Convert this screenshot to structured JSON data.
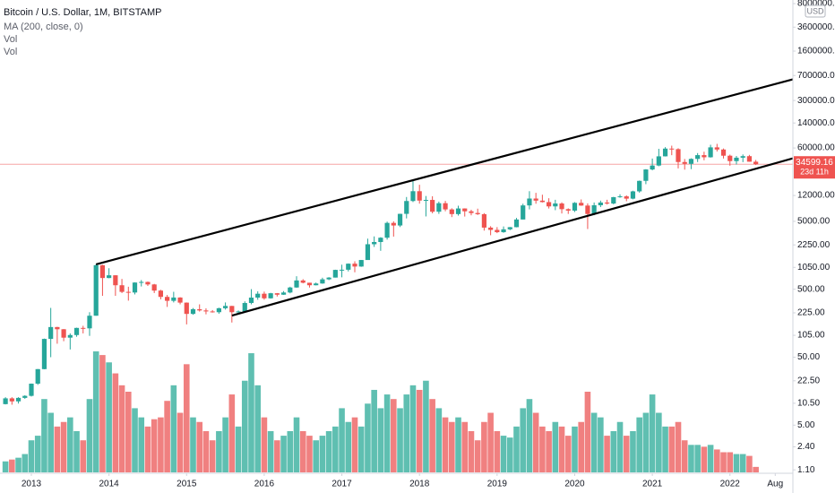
{
  "chart_data": {
    "type": "candlestick",
    "title": "Bitcoin / U.S. Dollar, 1M, BITSTAMP",
    "indicators": [
      "MA (200, close, 0)",
      "Vol",
      "Vol"
    ],
    "currency": "USD",
    "log_scale": true,
    "grid": false,
    "up_color": "#26a69a",
    "down_color": "#ef5350",
    "up_volume_color": "#5fbfb1",
    "down_volume_color": "#f08080",
    "x": [
      "2012-09",
      "2012-10",
      "2012-11",
      "2012-12",
      "2013-01",
      "2013-02",
      "2013-03",
      "2013-04",
      "2013-05",
      "2013-06",
      "2013-07",
      "2013-08",
      "2013-09",
      "2013-10",
      "2013-11",
      "2013-12",
      "2014-01",
      "2014-02",
      "2014-03",
      "2014-04",
      "2014-05",
      "2014-06",
      "2014-07",
      "2014-08",
      "2014-09",
      "2014-10",
      "2014-11",
      "2014-12",
      "2015-01",
      "2015-02",
      "2015-03",
      "2015-04",
      "2015-05",
      "2015-06",
      "2015-07",
      "2015-08",
      "2015-09",
      "2015-10",
      "2015-11",
      "2015-12",
      "2016-01",
      "2016-02",
      "2016-03",
      "2016-04",
      "2016-05",
      "2016-06",
      "2016-07",
      "2016-08",
      "2016-09",
      "2016-10",
      "2016-11",
      "2016-12",
      "2017-01",
      "2017-02",
      "2017-03",
      "2017-04",
      "2017-05",
      "2017-06",
      "2017-07",
      "2017-08",
      "2017-09",
      "2017-10",
      "2017-11",
      "2017-12",
      "2018-01",
      "2018-02",
      "2018-03",
      "2018-04",
      "2018-05",
      "2018-06",
      "2018-07",
      "2018-08",
      "2018-09",
      "2018-10",
      "2018-11",
      "2018-12",
      "2019-01",
      "2019-02",
      "2019-03",
      "2019-04",
      "2019-05",
      "2019-06",
      "2019-07",
      "2019-08",
      "2019-09",
      "2019-10",
      "2019-11",
      "2019-12",
      "2020-01",
      "2020-02",
      "2020-03",
      "2020-04",
      "2020-05",
      "2020-06",
      "2020-07",
      "2020-08",
      "2020-09",
      "2020-10",
      "2020-11",
      "2020-12",
      "2021-01",
      "2021-02",
      "2021-03",
      "2021-04",
      "2021-05",
      "2021-06",
      "2021-07",
      "2021-08",
      "2021-09",
      "2021-10",
      "2021-11",
      "2021-12",
      "2022-01",
      "2022-02",
      "2022-03",
      "2022-04",
      "2022-05"
    ],
    "open": [
      10.2,
      12.4,
      11.2,
      12.6,
      13.5,
      20.4,
      33.4,
      93,
      139,
      129,
      97,
      106,
      135,
      133,
      204,
      1130,
      732,
      803,
      573,
      458,
      448,
      628,
      641,
      589,
      478,
      386,
      338,
      378,
      318,
      217,
      254,
      244,
      236,
      230,
      263,
      284,
      230,
      236,
      314,
      377,
      430,
      368,
      437,
      416,
      448,
      531,
      674,
      624,
      573,
      608,
      700,
      743,
      964,
      970,
      1190,
      1080,
      1348,
      2300,
      2480,
      2870,
      4740,
      4340,
      6440,
      9950,
      13880,
      10100,
      10330,
      6920,
      9240,
      7490,
      6390,
      7730,
      7020,
      6630,
      6370,
      4040,
      3740,
      3460,
      3810,
      4100,
      5320,
      8570,
      10820,
      10080,
      9590,
      8290,
      9150,
      7550,
      7190,
      9350,
      8530,
      6410,
      8620,
      9450,
      9140,
      11340,
      11650,
      10780,
      13800,
      19700,
      28990,
      33110,
      45200,
      58800,
      57700,
      37300,
      35040,
      41460,
      47100,
      43820,
      61300,
      57000,
      46200,
      38500,
      43200,
      45500,
      37700
    ],
    "high": [
      12.9,
      12.9,
      12.9,
      13.8,
      20.5,
      33.5,
      94,
      266,
      140,
      130,
      112,
      136,
      145,
      230,
      1163,
      1150,
      1020,
      805,
      709,
      545,
      633,
      683,
      649,
      600,
      491,
      412,
      459,
      382,
      320,
      265,
      300,
      262,
      247,
      268,
      320,
      285,
      244,
      332,
      502,
      466,
      462,
      443,
      440,
      470,
      545,
      778,
      704,
      624,
      628,
      740,
      755,
      970,
      1150,
      1200,
      1290,
      1350,
      2780,
      3000,
      2920,
      4950,
      5000,
      6470,
      11400,
      19670,
      17250,
      11790,
      11700,
      9760,
      9990,
      7780,
      8490,
      7760,
      7400,
      7680,
      6600,
      4240,
      4110,
      4200,
      4130,
      5600,
      9080,
      13880,
      13130,
      12320,
      10930,
      10370,
      9520,
      7760,
      9580,
      10500,
      9190,
      9460,
      10080,
      10380,
      11450,
      12480,
      12070,
      14100,
      19900,
      29300,
      41960,
      58350,
      61780,
      64900,
      59600,
      41300,
      42300,
      50500,
      52900,
      67000,
      69000,
      59000,
      47900,
      45800,
      48200,
      47500,
      40000
    ],
    "low": [
      10.1,
      10.0,
      10.4,
      12.2,
      13.2,
      19.6,
      33.2,
      50,
      79,
      86,
      65,
      100,
      112,
      103,
      204,
      400,
      726,
      400,
      440,
      340,
      420,
      550,
      560,
      440,
      355,
      275,
      320,
      300,
      152,
      211,
      235,
      214,
      227,
      218,
      251,
      162,
      225,
      235,
      300,
      350,
      351,
      364,
      391,
      413,
      436,
      525,
      611,
      530,
      570,
      603,
      681,
      744,
      750,
      915,
      890,
      1070,
      1350,
      2100,
      1840,
      2690,
      2980,
      4120,
      5520,
      9600,
      9100,
      5900,
      6550,
      6430,
      7030,
      5770,
      6070,
      5880,
      6130,
      6200,
      3650,
      3120,
      3350,
      3390,
      3700,
      4080,
      5330,
      7500,
      9070,
      9470,
      7720,
      7300,
      6520,
      6420,
      6850,
      8450,
      3850,
      6150,
      8100,
      8830,
      8900,
      11110,
      9870,
      10540,
      13200,
      17600,
      28130,
      32300,
      45000,
      47000,
      30000,
      28800,
      29300,
      37300,
      39600,
      43300,
      53300,
      42000,
      32900,
      34300,
      37200,
      37600,
      33700
    ],
    "close": [
      12.4,
      11.2,
      12.6,
      13.5,
      20.4,
      33.4,
      93,
      139,
      129,
      97,
      106,
      135,
      133,
      204,
      1130,
      732,
      803,
      573,
      458,
      448,
      628,
      641,
      589,
      478,
      386,
      338,
      378,
      318,
      217,
      254,
      244,
      236,
      230,
      263,
      284,
      230,
      236,
      314,
      377,
      430,
      368,
      437,
      416,
      448,
      531,
      674,
      624,
      573,
      608,
      700,
      743,
      964,
      970,
      1190,
      1080,
      1348,
      2300,
      2480,
      2870,
      4740,
      4340,
      6440,
      9950,
      13880,
      10100,
      10330,
      6920,
      9240,
      7490,
      6390,
      7730,
      7020,
      6630,
      6370,
      4040,
      3740,
      3460,
      3810,
      4100,
      5320,
      8570,
      10820,
      10080,
      9590,
      8290,
      9150,
      7550,
      7190,
      9350,
      8530,
      6410,
      8620,
      9450,
      9140,
      11340,
      11650,
      10780,
      13800,
      19700,
      28990,
      33110,
      45200,
      58800,
      57700,
      37300,
      35040,
      41460,
      47100,
      43820,
      61300,
      57000,
      46200,
      38500,
      43200,
      45500,
      37700,
      34599.16
    ],
    "volume": [
      12,
      14,
      16,
      20,
      35,
      40,
      80,
      65,
      50,
      55,
      60,
      45,
      35,
      80,
      132,
      128,
      120,
      108,
      95,
      88,
      70,
      60,
      50,
      58,
      60,
      78,
      95,
      65,
      118,
      60,
      55,
      45,
      35,
      45,
      60,
      85,
      50,
      100,
      130,
      95,
      60,
      45,
      35,
      40,
      45,
      60,
      45,
      40,
      35,
      40,
      45,
      50,
      70,
      55,
      60,
      50,
      75,
      90,
      70,
      85,
      80,
      70,
      85,
      95,
      90,
      100,
      80,
      70,
      60,
      55,
      60,
      55,
      45,
      35,
      55,
      65,
      45,
      40,
      38,
      50,
      70,
      80,
      65,
      50,
      45,
      55,
      50,
      40,
      50,
      55,
      88,
      65,
      60,
      40,
      45,
      55,
      40,
      45,
      60,
      65,
      85,
      65,
      50,
      50,
      55,
      35,
      30,
      30,
      28,
      30,
      25,
      22,
      22,
      20,
      20,
      18,
      6
    ],
    "ylim": [
      0.68,
      9040000
    ],
    "yticks": [
      {
        "value": 8000000,
        "label": "8000000.00"
      },
      {
        "value": 3600000,
        "label": "3600000.00"
      },
      {
        "value": 1600000,
        "label": "1600000.00"
      },
      {
        "value": 700000,
        "label": "700000.00"
      },
      {
        "value": 300000,
        "label": "300000.00"
      },
      {
        "value": 140000,
        "label": "140000.00"
      },
      {
        "value": 60000,
        "label": "60000.00"
      },
      {
        "value": 12000,
        "label": "12000.00"
      },
      {
        "value": 5000,
        "label": "5000.00"
      },
      {
        "value": 2250,
        "label": "2250.00"
      },
      {
        "value": 1050,
        "label": "1050.00"
      },
      {
        "value": 500,
        "label": "500.00"
      },
      {
        "value": 225,
        "label": "225.00"
      },
      {
        "value": 105,
        "label": "105.00"
      },
      {
        "value": 50,
        "label": "50.00"
      },
      {
        "value": 22.5,
        "label": "22.50"
      },
      {
        "value": 10.5,
        "label": "10.50"
      },
      {
        "value": 5,
        "label": "5.00"
      },
      {
        "value": 2.4,
        "label": "2.40"
      },
      {
        "value": 1.1,
        "label": "1.10"
      }
    ],
    "xticks": [
      {
        "value": "2013-01",
        "label": "2013"
      },
      {
        "value": "2014-01",
        "label": "2014"
      },
      {
        "value": "2015-01",
        "label": "2015"
      },
      {
        "value": "2016-01",
        "label": "2016"
      },
      {
        "value": "2017-01",
        "label": "2017"
      },
      {
        "value": "2018-01",
        "label": "2018"
      },
      {
        "value": "2019-01",
        "label": "2019"
      },
      {
        "value": "2020-01",
        "label": "2020"
      },
      {
        "value": "2021-01",
        "label": "2021"
      },
      {
        "value": "2022-01",
        "label": "2022"
      },
      {
        "value": "2022-08",
        "label": "Aug"
      }
    ],
    "last_price": {
      "value": 34599.16,
      "label": "34599.16"
    },
    "countdown": "23d 11h",
    "trendlines": [
      {
        "x": [
          "2013-11",
          "2022-11"
        ],
        "y": [
          1163,
          624000
        ]
      },
      {
        "x": [
          "2015-08",
          "2022-11"
        ],
        "y": [
          205,
          43000
        ]
      }
    ]
  }
}
